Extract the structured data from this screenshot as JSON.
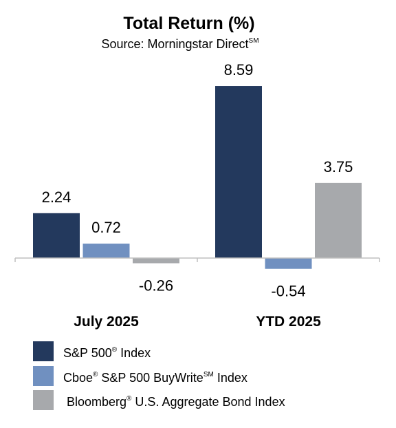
{
  "chart_data": {
    "type": "bar",
    "title": "Total Return (%)",
    "subtitle": {
      "text": "Source: Morningstar Direct",
      "sup": "SM"
    },
    "categories": [
      "July 2025",
      "YTD 2025"
    ],
    "series": [
      {
        "name": "S&P 500",
        "sup": "®",
        "suffix": " Index",
        "color": "#23395d",
        "values": [
          2.24,
          8.59
        ]
      },
      {
        "name": "Cboe",
        "sup": "®",
        "suffix": " S&P 500 BuyWrite",
        "sup2": "SM",
        "suffix2": " Index",
        "color": "#7090c0",
        "values": [
          0.72,
          -0.54
        ]
      },
      {
        "name": "Bloomberg",
        "sup": "®",
        "suffix": " U.S. Aggregate Bond Index",
        "color": "#a7a9ac",
        "values": [
          -0.26,
          3.75
        ]
      }
    ],
    "value_labels": [
      [
        "2.24",
        "8.59"
      ],
      [
        "0.72",
        "-0.54"
      ],
      [
        "-0.26",
        "3.75"
      ]
    ],
    "ylim": [
      -1,
      9
    ],
    "legend_position": "bottom-left",
    "grid": false
  }
}
